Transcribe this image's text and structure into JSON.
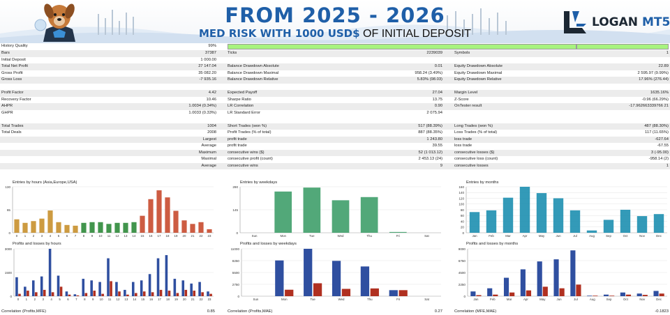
{
  "header": {
    "title": "FROM 2025 - 2026",
    "subtitle_bold": "MED RISK WITH 1000 USD$",
    "subtitle_rest": " OF INITIAL DEPOSIT",
    "logo_word1": "LOGAN",
    "logo_word2": "MT5"
  },
  "stats": {
    "history_quality": {
      "label": "History Quality",
      "value": "99%",
      "fraction": 0.99
    },
    "rows": [
      {
        "shade": true,
        "c1": [
          "Bars",
          "37387"
        ],
        "c2": [
          "Ticks",
          "2239039"
        ],
        "c3": [
          "Symbols",
          "1"
        ]
      },
      {
        "shade": false,
        "c1": [
          "Initial Deposit",
          "1 000.00"
        ],
        "c2": [
          "",
          ""
        ],
        "c3": [
          "",
          ""
        ]
      },
      {
        "shade": true,
        "c1": [
          "Total Net Profit",
          "27 147.04"
        ],
        "c2": [
          "Balance Drawdown Absolute",
          "0.01"
        ],
        "c3": [
          "Equity Drawdown Absolute",
          "22.89"
        ]
      },
      {
        "shade": false,
        "c1": [
          "Gross Profit",
          "35 082.20"
        ],
        "c2": [
          "Balance Drawdown Maximal",
          "958.24 (3.49%)"
        ],
        "c3": [
          "Equity Drawdown Maximal",
          "2 595.97 (9.99%)"
        ]
      },
      {
        "shade": true,
        "c1": [
          "Gross Loss",
          "-7 935.16"
        ],
        "c2": [
          "Balance Drawdown Relative",
          "5.83% (98.03)"
        ],
        "c3": [
          "Equity Drawdown Relative",
          "17.96% (276.44)"
        ]
      },
      {
        "shade": false,
        "c1": [
          "",
          ""
        ],
        "c2": [
          "",
          ""
        ],
        "c3": [
          "",
          ""
        ]
      },
      {
        "shade": true,
        "c1": [
          "Profit Factor",
          "4.42"
        ],
        "c2": [
          "Expected Payoff",
          "27.04"
        ],
        "c3": [
          "Margin Level",
          "1635.16%"
        ]
      },
      {
        "shade": false,
        "c1": [
          "Recovery Factor",
          "10.46"
        ],
        "c2": [
          "Sharpe Ratio",
          "13.75"
        ],
        "c3": [
          "Z-Score",
          "-0.96 (66.29%)"
        ]
      },
      {
        "shade": true,
        "c1": [
          "AHPR",
          "1.0034 (0.34%)"
        ],
        "c2": [
          "LR Correlation",
          "0.90"
        ],
        "c3": [
          "OnTester result",
          "-17.962663339766 21"
        ]
      },
      {
        "shade": false,
        "c1": [
          "GHPR",
          "1.0033 (0.33%)"
        ],
        "c2": [
          "LR Standard Error",
          "2 075.94"
        ],
        "c3": [
          "",
          ""
        ]
      },
      {
        "shade": false,
        "c1": [
          "",
          ""
        ],
        "c2": [
          "",
          ""
        ],
        "c3": [
          "",
          ""
        ]
      },
      {
        "shade": true,
        "c1": [
          "Total Trades",
          "1004"
        ],
        "c2": [
          "Short Trades (won %)",
          "517 (88.39%)"
        ],
        "c3": [
          "Long Trades (won %)",
          "487 (88.30%)"
        ]
      },
      {
        "shade": false,
        "c1": [
          "Total Deals",
          "2008"
        ],
        "c2": [
          "Profit Trades (% of total)",
          "887 (88.35%)"
        ],
        "c3": [
          "Loss Trades (% of total)",
          "117 (11.65%)"
        ]
      },
      {
        "shade": true,
        "right": true,
        "c1": [
          "Largest",
          ""
        ],
        "c2": [
          "profit trade",
          "1 243.80"
        ],
        "c3": [
          "loss trade",
          "-627.64"
        ]
      },
      {
        "shade": false,
        "right": true,
        "c1": [
          "Average",
          ""
        ],
        "c2": [
          "profit trade",
          "39.55"
        ],
        "c3": [
          "loss trade",
          "-67.55"
        ]
      },
      {
        "shade": true,
        "right": true,
        "c1": [
          "Maximum",
          ""
        ],
        "c2": [
          "consecutive wins ($)",
          "52 (1 013.12)"
        ],
        "c3": [
          "consecutive losses ($)",
          "3 (-95.00)"
        ]
      },
      {
        "shade": false,
        "right": true,
        "c1": [
          "Maximal",
          ""
        ],
        "c2": [
          "consecutive profit (count)",
          "2 453.13 (24)"
        ],
        "c3": [
          "consecutive loss (count)",
          "-958.14 (2)"
        ]
      },
      {
        "shade": true,
        "right": true,
        "c1": [
          "Average",
          ""
        ],
        "c2": [
          "consecutive wins",
          "9"
        ],
        "c3": [
          "consecutive losses",
          "1"
        ]
      }
    ]
  },
  "charts": {
    "entries_hours": {
      "title": "Entries by hours (Asia,Europe,USA)",
      "yticks": [
        "130",
        "65",
        "0"
      ],
      "ylim": [
        0,
        130
      ],
      "categories": [
        "0",
        "1",
        "2",
        "3",
        "4",
        "5",
        "6",
        "7",
        "8",
        "9",
        "10",
        "11",
        "12",
        "13",
        "14",
        "15",
        "16",
        "17",
        "18",
        "19",
        "20",
        "21",
        "22",
        "23"
      ],
      "values": [
        38,
        28,
        33,
        40,
        63,
        30,
        22,
        20,
        28,
        30,
        30,
        25,
        28,
        28,
        30,
        48,
        95,
        120,
        100,
        62,
        35,
        25,
        30,
        10
      ],
      "colors": [
        "#c8902c",
        "#c8902c",
        "#c8902c",
        "#c8902c",
        "#c8902c",
        "#c8902c",
        "#c8902c",
        "#c8902c",
        "#2e8a3a",
        "#2e8a3a",
        "#2e8a3a",
        "#2e8a3a",
        "#2e8a3a",
        "#2e8a3a",
        "#2e8a3a",
        "#c84a2e",
        "#c84a2e",
        "#c84a2e",
        "#c84a2e",
        "#c84a2e",
        "#c84a2e",
        "#c84a2e",
        "#c84a2e",
        "#c84a2e"
      ]
    },
    "entries_weekdays": {
      "title": "Entries by weekdays",
      "yticks": [
        "290",
        "145",
        "0"
      ],
      "ylim": [
        0,
        290
      ],
      "categories": [
        "Sun",
        "Mon",
        "Tue",
        "Wed",
        "Thu",
        "Fri",
        "Sat"
      ],
      "values": [
        0,
        260,
        285,
        205,
        225,
        5,
        0
      ],
      "color": "#3f9e6a"
    },
    "entries_months": {
      "title": "Entries by months",
      "yticks": [
        "160",
        "140",
        "120",
        "100",
        "80",
        "60",
        "40",
        "20",
        "0"
      ],
      "ylim": [
        0,
        160
      ],
      "categories": [
        "Jan",
        "Feb",
        "Mar",
        "Apr",
        "May",
        "Jun",
        "Jul",
        "Aug",
        "Sep",
        "Oct",
        "Nov",
        "Dec"
      ],
      "values": [
        72,
        78,
        122,
        160,
        138,
        120,
        78,
        8,
        45,
        80,
        58,
        65
      ],
      "color": "#1d8fb0"
    },
    "pl_hours": {
      "title": "Profits and losses by hours",
      "yticks": [
        "3000",
        "1500",
        "0"
      ],
      "ylim": [
        0,
        3000
      ],
      "categories": [
        "0",
        "1",
        "2",
        "3",
        "4",
        "5",
        "6",
        "7",
        "8",
        "9",
        "10",
        "11",
        "12",
        "13",
        "14",
        "15",
        "16",
        "17",
        "18",
        "19",
        "20",
        "21",
        "22",
        "23"
      ],
      "profits": [
        1200,
        600,
        1000,
        1250,
        3000,
        1300,
        300,
        120,
        1100,
        1000,
        900,
        2400,
        900,
        400,
        900,
        1000,
        1400,
        2400,
        2600,
        1100,
        1000,
        800,
        900,
        300
      ],
      "losses": [
        150,
        350,
        250,
        400,
        250,
        600,
        100,
        50,
        200,
        350,
        150,
        950,
        300,
        100,
        200,
        300,
        250,
        400,
        350,
        200,
        400,
        350,
        250,
        150
      ]
    },
    "pl_weekdays": {
      "title": "Profits and losses by weekdays",
      "yticks": [
        "11000",
        "8250",
        "5500",
        "2750",
        "0"
      ],
      "ylim": [
        0,
        11000
      ],
      "categories": [
        "Sun",
        "Mon",
        "Tue",
        "Wed",
        "Thu",
        "Fri",
        "Sat"
      ],
      "profits": [
        0,
        8300,
        11000,
        8200,
        6900,
        1400,
        0
      ],
      "losses": [
        0,
        1500,
        3000,
        1700,
        1800,
        1400,
        0
      ]
    },
    "pl_months": {
      "title": "Profits and losses by months",
      "yticks": [
        "9000",
        "6750",
        "4500",
        "2250",
        "0"
      ],
      "ylim": [
        0,
        9000
      ],
      "categories": [
        "Jan",
        "Feb",
        "Mar",
        "Apr",
        "May",
        "Jun",
        "Jul",
        "Aug",
        "Sep",
        "Oct",
        "Nov",
        "Dec"
      ],
      "profits": [
        900,
        1500,
        3500,
        5100,
        6600,
        7000,
        8700,
        100,
        300,
        700,
        500,
        1000
      ],
      "losses": [
        200,
        300,
        700,
        1100,
        1800,
        1500,
        2200,
        100,
        100,
        300,
        250,
        500
      ]
    }
  },
  "correlations": {
    "c1": [
      "Correlation (Profits,MFE)",
      "0.85"
    ],
    "c2": [
      "Correlation (Profits,MAE)",
      "0.27"
    ],
    "c3": [
      "Correlation (MFE,MAE)",
      "-0.1823"
    ]
  },
  "colors": {
    "accent": "#1f5fa8",
    "profit": "#2f4fa0",
    "loss": "#b03020",
    "quality": "#a7f37f"
  },
  "icons": [
    "dog-mascot-avatar",
    "logan-logo-mark"
  ]
}
